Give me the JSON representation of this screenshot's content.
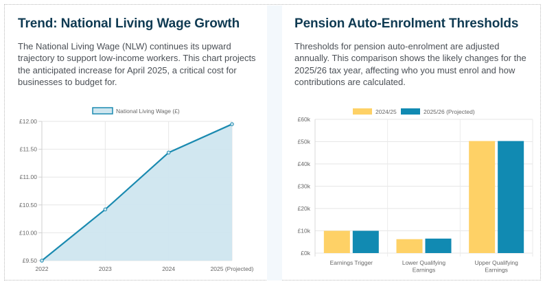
{
  "left_panel": {
    "title": "Trend: National Living Wage Growth",
    "description": "The National Living Wage (NLW) continues its upward trajectory to support low-income workers. This chart projects the anticipated increase for April 2025, a critical cost for businesses to budget for."
  },
  "right_panel": {
    "title": "Pension Auto-Enrolment Thresholds",
    "description": "Thresholds for pension auto-enrolment are adjusted annually. This comparison shows the likely changes for the 2025/26 tax year, affecting who you must enrol and how contributions are calculated."
  },
  "chart_data": [
    {
      "type": "area",
      "title": "",
      "x": [
        "2022",
        "2023",
        "2024",
        "2025 (Projected)"
      ],
      "series": [
        {
          "name": "National Living Wage (£)",
          "values": [
            9.5,
            10.42,
            11.44,
            11.95
          ],
          "color": "#1a8ab0",
          "fill": "#cfe6ef"
        }
      ],
      "ylim": [
        9.5,
        12.0
      ],
      "yticks": [
        9.5,
        10.0,
        10.5,
        11.0,
        11.5,
        12.0
      ],
      "ytick_labels": [
        "£9.50",
        "£10.00",
        "£10.50",
        "£11.00",
        "£11.50",
        "£12.00"
      ],
      "xlabel": "",
      "ylabel": "",
      "grid": true,
      "legend": "top-center"
    },
    {
      "type": "bar",
      "title": "",
      "categories": [
        [
          "Earnings Trigger"
        ],
        [
          "Lower Qualifying",
          "Earnings"
        ],
        [
          "Upper Qualifying",
          "Earnings"
        ]
      ],
      "series": [
        {
          "name": "2024/25",
          "values": [
            10000,
            6240,
            50270
          ],
          "color": "#fed166"
        },
        {
          "name": "2025/26 (Projected)",
          "values": [
            10000,
            6500,
            50270
          ],
          "color": "#118ab2"
        }
      ],
      "ylim": [
        0,
        60000
      ],
      "yticks": [
        0,
        10000,
        20000,
        30000,
        40000,
        50000,
        60000
      ],
      "ytick_labels": [
        "£0k",
        "£10k",
        "£20k",
        "£30k",
        "£40k",
        "£50k",
        "£60k"
      ],
      "xlabel": "",
      "ylabel": "",
      "grid": true,
      "legend": "top-center"
    }
  ]
}
